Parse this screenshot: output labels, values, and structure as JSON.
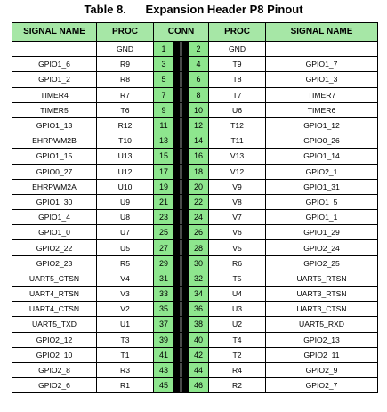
{
  "caption": "Table 8.      Expansion Header P8 Pinout",
  "headers": [
    "SIGNAL NAME",
    "PROC",
    "CONN",
    "PROC",
    "SIGNAL NAME"
  ],
  "rows": [
    {
      "sig_l": "",
      "proc_l": "GND",
      "pin_l": "1",
      "pin_r": "2",
      "proc_r": "GND",
      "sig_r": ""
    },
    {
      "sig_l": "GPIO1_6",
      "proc_l": "R9",
      "pin_l": "3",
      "pin_r": "4",
      "proc_r": "T9",
      "sig_r": "GPIO1_7"
    },
    {
      "sig_l": "GPIO1_2",
      "proc_l": "R8",
      "pin_l": "5",
      "pin_r": "6",
      "proc_r": "T8",
      "sig_r": "GPIO1_3"
    },
    {
      "sig_l": "TIMER4",
      "proc_l": "R7",
      "pin_l": "7",
      "pin_r": "8",
      "proc_r": "T7",
      "sig_r": "TIMER7"
    },
    {
      "sig_l": "TIMER5",
      "proc_l": "T6",
      "pin_l": "9",
      "pin_r": "10",
      "proc_r": "U6",
      "sig_r": "TIMER6"
    },
    {
      "sig_l": "GPIO1_13",
      "proc_l": "R12",
      "pin_l": "11",
      "pin_r": "12",
      "proc_r": "T12",
      "sig_r": "GPIO1_12"
    },
    {
      "sig_l": "EHRPWM2B",
      "proc_l": "T10",
      "pin_l": "13",
      "pin_r": "14",
      "proc_r": "T11",
      "sig_r": "GPIO0_26"
    },
    {
      "sig_l": "GPIO1_15",
      "proc_l": "U13",
      "pin_l": "15",
      "pin_r": "16",
      "proc_r": "V13",
      "sig_r": "GPIO1_14"
    },
    {
      "sig_l": "GPIO0_27",
      "proc_l": "U12",
      "pin_l": "17",
      "pin_r": "18",
      "proc_r": "V12",
      "sig_r": "GPIO2_1"
    },
    {
      "sig_l": "EHRPWM2A",
      "proc_l": "U10",
      "pin_l": "19",
      "pin_r": "20",
      "proc_r": "V9",
      "sig_r": "GPIO1_31"
    },
    {
      "sig_l": "GPIO1_30",
      "proc_l": "U9",
      "pin_l": "21",
      "pin_r": "22",
      "proc_r": "V8",
      "sig_r": "GPIO1_5"
    },
    {
      "sig_l": "GPIO1_4",
      "proc_l": "U8",
      "pin_l": "23",
      "pin_r": "24",
      "proc_r": "V7",
      "sig_r": "GPIO1_1"
    },
    {
      "sig_l": "GPIO1_0",
      "proc_l": "U7",
      "pin_l": "25",
      "pin_r": "26",
      "proc_r": "V6",
      "sig_r": "GPIO1_29"
    },
    {
      "sig_l": "GPIO2_22",
      "proc_l": "U5",
      "pin_l": "27",
      "pin_r": "28",
      "proc_r": "V5",
      "sig_r": "GPIO2_24"
    },
    {
      "sig_l": "GPIO2_23",
      "proc_l": "R5",
      "pin_l": "29",
      "pin_r": "30",
      "proc_r": "R6",
      "sig_r": "GPIO2_25"
    },
    {
      "sig_l": "UART5_CTSN",
      "proc_l": "V4",
      "pin_l": "31",
      "pin_r": "32",
      "proc_r": "T5",
      "sig_r": "UART5_RTSN"
    },
    {
      "sig_l": "UART4_RTSN",
      "proc_l": "V3",
      "pin_l": "33",
      "pin_r": "34",
      "proc_r": "U4",
      "sig_r": "UART3_RTSN"
    },
    {
      "sig_l": "UART4_CTSN",
      "proc_l": "V2",
      "pin_l": "35",
      "pin_r": "36",
      "proc_r": "U3",
      "sig_r": "UART3_CTSN"
    },
    {
      "sig_l": "UART5_TXD",
      "proc_l": "U1",
      "pin_l": "37",
      "pin_r": "38",
      "proc_r": "U2",
      "sig_r": "UART5_RXD"
    },
    {
      "sig_l": "GPIO2_12",
      "proc_l": "T3",
      "pin_l": "39",
      "pin_r": "40",
      "proc_r": "T4",
      "sig_r": "GPIO2_13"
    },
    {
      "sig_l": "GPIO2_10",
      "proc_l": "T1",
      "pin_l": "41",
      "pin_r": "42",
      "proc_r": "T2",
      "sig_r": "GPIO2_11"
    },
    {
      "sig_l": "GPIO2_8",
      "proc_l": "R3",
      "pin_l": "43",
      "pin_r": "44",
      "proc_r": "R4",
      "sig_r": "GPIO2_9"
    },
    {
      "sig_l": "GPIO2_6",
      "proc_l": "R1",
      "pin_l": "45",
      "pin_r": "46",
      "proc_r": "R2",
      "sig_r": "GPIO2_7"
    }
  ]
}
